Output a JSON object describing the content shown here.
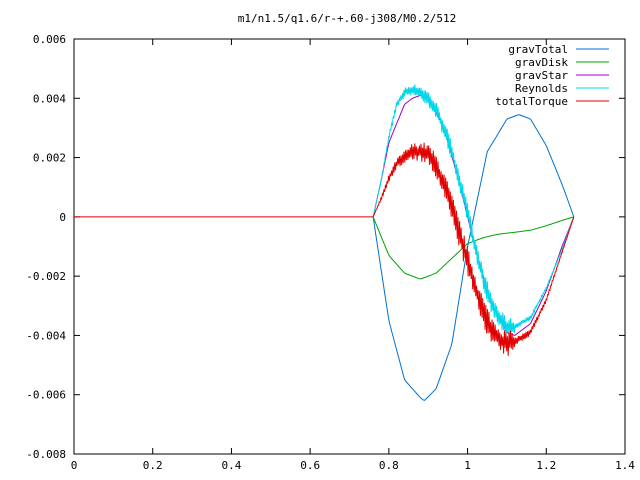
{
  "chart_data": {
    "type": "line",
    "title": "m1/n1.5/q1.6/r-+.60-j308/M0.2/512",
    "xlabel": "",
    "ylabel": "",
    "xlim": [
      0,
      1.4
    ],
    "ylim": [
      -0.008,
      0.006
    ],
    "x_ticks": [
      0,
      0.2,
      0.4,
      0.6,
      0.8,
      1,
      1.2,
      1.4
    ],
    "x_tick_labels": [
      "0",
      "0.2",
      "0.4",
      "0.6",
      "0.8",
      "1",
      "1.2",
      "1.4"
    ],
    "y_ticks": [
      -0.008,
      -0.006,
      -0.004,
      -0.002,
      0,
      0.002,
      0.004,
      0.006
    ],
    "y_tick_labels": [
      "-0.008",
      "-0.006",
      "-0.004",
      "-0.002",
      "0",
      "0.002",
      "0.004",
      "0.006"
    ],
    "grid": false,
    "legend_position": "top-right",
    "series": [
      {
        "name": "gravTotal",
        "color": "#0070d0",
        "noise": 0,
        "x": [
          0.76,
          0.8,
          0.84,
          0.88,
          0.89,
          0.92,
          0.96,
          1.0,
          1.05,
          1.1,
          1.13,
          1.16,
          1.2,
          1.24,
          1.27
        ],
        "y": [
          0,
          -0.0035,
          -0.0055,
          -0.0061,
          -0.0062,
          -0.0058,
          -0.0043,
          -0.001,
          0.0022,
          0.0033,
          0.00345,
          0.0033,
          0.0024,
          0.0011,
          0
        ]
      },
      {
        "name": "gravDisk",
        "color": "#00a000",
        "noise": 0,
        "x": [
          0.76,
          0.8,
          0.84,
          0.88,
          0.92,
          0.96,
          1.0,
          1.04,
          1.08,
          1.12,
          1.16,
          1.2,
          1.24,
          1.27
        ],
        "y": [
          0,
          -0.0013,
          -0.0019,
          -0.0021,
          -0.0019,
          -0.0014,
          -0.0009,
          -0.0007,
          -0.00058,
          -0.00052,
          -0.00045,
          -0.0003,
          -0.00012,
          0
        ]
      },
      {
        "name": "gravStar",
        "color": "#a000c0",
        "noise": 0,
        "x": [
          0.76,
          0.78,
          0.8,
          0.84,
          0.86,
          0.88,
          0.9,
          0.94,
          0.98,
          1.02,
          1.06,
          1.1,
          1.12,
          1.16,
          1.2,
          1.24,
          1.27
        ],
        "y": [
          0,
          0.0012,
          0.0025,
          0.0038,
          0.004,
          0.0041,
          0.004,
          0.003,
          0.0011,
          -0.0011,
          -0.0029,
          -0.0039,
          -0.004,
          -0.0036,
          -0.0025,
          -0.001,
          0
        ]
      },
      {
        "name": "Reynolds",
        "color": "#00d8e8",
        "noise": 0.00035,
        "x": [
          0.76,
          0.78,
          0.8,
          0.82,
          0.84,
          0.86,
          0.88,
          0.9,
          0.92,
          0.94,
          0.96,
          0.98,
          1.0,
          1.02,
          1.04,
          1.06,
          1.08,
          1.1,
          1.12,
          1.16,
          1.2,
          1.24,
          1.27
        ],
        "y": [
          0,
          0.0012,
          0.0027,
          0.0038,
          0.0042,
          0.0043,
          0.0042,
          0.004,
          0.0036,
          0.003,
          0.0022,
          0.0012,
          0.0001,
          -0.0011,
          -0.0021,
          -0.0029,
          -0.0034,
          -0.0037,
          -0.0037,
          -0.0034,
          -0.0024,
          -0.0011,
          0
        ]
      },
      {
        "name": "totalTorque",
        "color": "#e00000",
        "noise": 0.0005,
        "x": [
          0.76,
          0.78,
          0.8,
          0.82,
          0.84,
          0.86,
          0.88,
          0.9,
          0.92,
          0.94,
          0.96,
          0.98,
          1.0,
          1.02,
          1.04,
          1.06,
          1.08,
          1.1,
          1.12,
          1.16,
          1.2,
          1.24,
          1.27
        ],
        "y": [
          0,
          0.0006,
          0.0013,
          0.0018,
          0.002,
          0.0022,
          0.0022,
          0.0021,
          0.0017,
          0.0011,
          0.0003,
          -0.0006,
          -0.0015,
          -0.0024,
          -0.0032,
          -0.0038,
          -0.0041,
          -0.0043,
          -0.0042,
          -0.0039,
          -0.0028,
          -0.0012,
          0
        ]
      }
    ],
    "flat_segment": {
      "x": [
        0,
        0.76
      ],
      "y": [
        0,
        0
      ]
    }
  }
}
